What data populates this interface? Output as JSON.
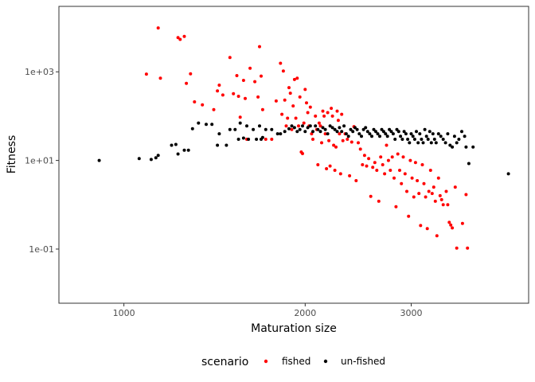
{
  "chart_data": {
    "type": "scatter",
    "title": "",
    "xlabel": "Maturation size",
    "ylabel": "Fitness",
    "x_scale": "log",
    "y_scale": "log",
    "xlim": [
      780,
      4700
    ],
    "ylim": [
      0.006,
      30000
    ],
    "x_ticks": [
      1000,
      2000,
      3000
    ],
    "x_tick_labels": [
      "1000",
      "2000",
      "3000"
    ],
    "y_ticks": [
      0.1,
      10,
      1000
    ],
    "y_tick_labels": [
      "1e-01",
      "1e+01",
      "1e+03"
    ],
    "grid": false,
    "legend_position": "bottom",
    "legend_title": "scenario",
    "series": [
      {
        "name": "fished",
        "color": "#ff0000",
        "points": [
          [
            1090,
            890
          ],
          [
            1140,
            9780
          ],
          [
            1150,
            720
          ],
          [
            1230,
            5900
          ],
          [
            1240,
            5400
          ],
          [
            1260,
            6300
          ],
          [
            1270,
            550
          ],
          [
            1290,
            900
          ],
          [
            1310,
            210
          ],
          [
            1350,
            180
          ],
          [
            1410,
            140
          ],
          [
            1430,
            370
          ],
          [
            1440,
            500
          ],
          [
            1460,
            300
          ],
          [
            1500,
            2100
          ],
          [
            1520,
            320
          ],
          [
            1540,
            820
          ],
          [
            1550,
            280
          ],
          [
            1560,
            95
          ],
          [
            1580,
            640
          ],
          [
            1590,
            250
          ],
          [
            1600,
            30
          ],
          [
            1620,
            1200
          ],
          [
            1650,
            600
          ],
          [
            1670,
            270
          ],
          [
            1680,
            3700
          ],
          [
            1690,
            800
          ],
          [
            1700,
            140
          ],
          [
            1720,
            30
          ],
          [
            1760,
            30
          ],
          [
            1790,
            220
          ],
          [
            1820,
            1560
          ],
          [
            1830,
            110
          ],
          [
            1840,
            1040
          ],
          [
            1850,
            230
          ],
          [
            1860,
            60
          ],
          [
            1870,
            90
          ],
          [
            1880,
            440
          ],
          [
            1890,
            330
          ],
          [
            1900,
            50
          ],
          [
            1910,
            170
          ],
          [
            1920,
            670
          ],
          [
            1930,
            90
          ],
          [
            1940,
            720
          ],
          [
            1950,
            60
          ],
          [
            1960,
            270
          ],
          [
            1970,
            15.5
          ],
          [
            1980,
            14.3
          ],
          [
            1990,
            70
          ],
          [
            2000,
            400
          ],
          [
            2010,
            200
          ],
          [
            2020,
            120
          ],
          [
            2030,
            60
          ],
          [
            2040,
            160
          ],
          [
            2050,
            40
          ],
          [
            2060,
            30
          ],
          [
            2080,
            100
          ],
          [
            2090,
            50
          ],
          [
            2100,
            8.0
          ],
          [
            2110,
            70
          ],
          [
            2120,
            60
          ],
          [
            2130,
            25
          ],
          [
            2140,
            130
          ],
          [
            2150,
            100
          ],
          [
            2160,
            40
          ],
          [
            2170,
            6.5
          ],
          [
            2180,
            120
          ],
          [
            2190,
            28
          ],
          [
            2200,
            7.5
          ],
          [
            2210,
            150
          ],
          [
            2220,
            100
          ],
          [
            2230,
            22
          ],
          [
            2240,
            6.0
          ],
          [
            2250,
            20
          ],
          [
            2260,
            130
          ],
          [
            2270,
            80
          ],
          [
            2280,
            40
          ],
          [
            2290,
            5.0
          ],
          [
            2300,
            110
          ],
          [
            2310,
            28
          ],
          [
            2330,
            40
          ],
          [
            2350,
            30
          ],
          [
            2370,
            4.5
          ],
          [
            2390,
            26
          ],
          [
            2410,
            58
          ],
          [
            2430,
            3.5
          ],
          [
            2450,
            25
          ],
          [
            2470,
            18
          ],
          [
            2490,
            8.0
          ],
          [
            2510,
            13
          ],
          [
            2530,
            7.5
          ],
          [
            2550,
            11
          ],
          [
            2570,
            1.55
          ],
          [
            2590,
            7
          ],
          [
            2610,
            9
          ],
          [
            2630,
            6
          ],
          [
            2650,
            1.2
          ],
          [
            2670,
            12
          ],
          [
            2690,
            8
          ],
          [
            2710,
            5
          ],
          [
            2730,
            22
          ],
          [
            2750,
            10
          ],
          [
            2770,
            6
          ],
          [
            2790,
            12
          ],
          [
            2810,
            4
          ],
          [
            2830,
            0.9
          ],
          [
            2850,
            14
          ],
          [
            2870,
            6
          ],
          [
            2890,
            3
          ],
          [
            2910,
            12
          ],
          [
            2930,
            5
          ],
          [
            2950,
            2
          ],
          [
            2970,
            0.55
          ],
          [
            2990,
            10
          ],
          [
            3010,
            4
          ],
          [
            3030,
            1.5
          ],
          [
            3050,
            9
          ],
          [
            3070,
            3.5
          ],
          [
            3090,
            1.8
          ],
          [
            3110,
            0.34
          ],
          [
            3130,
            8
          ],
          [
            3150,
            3
          ],
          [
            3170,
            1.5
          ],
          [
            3190,
            0.29
          ],
          [
            3210,
            2.0
          ],
          [
            3230,
            6
          ],
          [
            3250,
            1.8
          ],
          [
            3270,
            2.5
          ],
          [
            3290,
            1.2
          ],
          [
            3310,
            0.2
          ],
          [
            3330,
            4
          ],
          [
            3350,
            1.6
          ],
          [
            3370,
            1.3
          ],
          [
            3390,
            1.0
          ],
          [
            3430,
            2.0
          ],
          [
            3450,
            1.0
          ],
          [
            3470,
            0.4
          ],
          [
            3490,
            0.35
          ],
          [
            3510,
            0.3
          ],
          [
            3550,
            2.5
          ],
          [
            3570,
            0.105
          ],
          [
            3650,
            0.38
          ],
          [
            3700,
            1.7
          ],
          [
            3720,
            0.105
          ]
        ]
      },
      {
        "name": "un-fished",
        "color": "#000000",
        "points": [
          [
            910,
            10
          ],
          [
            1060,
            11
          ],
          [
            1110,
            10.5
          ],
          [
            1130,
            11.5
          ],
          [
            1140,
            13
          ],
          [
            1200,
            22
          ],
          [
            1220,
            23
          ],
          [
            1230,
            14
          ],
          [
            1260,
            17
          ],
          [
            1280,
            17
          ],
          [
            1300,
            52
          ],
          [
            1330,
            70
          ],
          [
            1370,
            65
          ],
          [
            1400,
            65
          ],
          [
            1430,
            22
          ],
          [
            1440,
            40
          ],
          [
            1480,
            22
          ],
          [
            1500,
            50
          ],
          [
            1530,
            50
          ],
          [
            1550,
            30
          ],
          [
            1560,
            70
          ],
          [
            1580,
            32
          ],
          [
            1600,
            60
          ],
          [
            1610,
            30
          ],
          [
            1640,
            50
          ],
          [
            1660,
            30
          ],
          [
            1680,
            60
          ],
          [
            1690,
            30
          ],
          [
            1700,
            33
          ],
          [
            1720,
            50
          ],
          [
            1760,
            50
          ],
          [
            1800,
            40
          ],
          [
            1820,
            40
          ],
          [
            1850,
            45
          ],
          [
            1880,
            52
          ],
          [
            1900,
            60
          ],
          [
            1920,
            55
          ],
          [
            1940,
            45
          ],
          [
            1960,
            50
          ],
          [
            1980,
            60
          ],
          [
            2000,
            45
          ],
          [
            2020,
            55
          ],
          [
            2040,
            60
          ],
          [
            2060,
            45
          ],
          [
            2080,
            60
          ],
          [
            2100,
            50
          ],
          [
            2120,
            45
          ],
          [
            2140,
            55
          ],
          [
            2160,
            50
          ],
          [
            2180,
            40
          ],
          [
            2200,
            60
          ],
          [
            2220,
            55
          ],
          [
            2240,
            50
          ],
          [
            2260,
            45
          ],
          [
            2280,
            55
          ],
          [
            2300,
            45
          ],
          [
            2320,
            60
          ],
          [
            2340,
            40
          ],
          [
            2360,
            35
          ],
          [
            2380,
            50
          ],
          [
            2400,
            45
          ],
          [
            2420,
            55
          ],
          [
            2440,
            50
          ],
          [
            2460,
            40
          ],
          [
            2480,
            35
          ],
          [
            2500,
            50
          ],
          [
            2520,
            55
          ],
          [
            2540,
            45
          ],
          [
            2560,
            40
          ],
          [
            2580,
            35
          ],
          [
            2600,
            50
          ],
          [
            2620,
            45
          ],
          [
            2640,
            40
          ],
          [
            2660,
            35
          ],
          [
            2680,
            50
          ],
          [
            2700,
            45
          ],
          [
            2720,
            40
          ],
          [
            2740,
            35
          ],
          [
            2760,
            50
          ],
          [
            2780,
            45
          ],
          [
            2800,
            40
          ],
          [
            2820,
            30
          ],
          [
            2840,
            50
          ],
          [
            2860,
            45
          ],
          [
            2880,
            35
          ],
          [
            2900,
            30
          ],
          [
            2920,
            45
          ],
          [
            2940,
            40
          ],
          [
            2960,
            30
          ],
          [
            2980,
            25
          ],
          [
            3000,
            40
          ],
          [
            3020,
            35
          ],
          [
            3040,
            30
          ],
          [
            3060,
            45
          ],
          [
            3080,
            25
          ],
          [
            3100,
            40
          ],
          [
            3120,
            30
          ],
          [
            3140,
            25
          ],
          [
            3160,
            50
          ],
          [
            3180,
            35
          ],
          [
            3200,
            30
          ],
          [
            3220,
            45
          ],
          [
            3240,
            25
          ],
          [
            3260,
            40
          ],
          [
            3280,
            30
          ],
          [
            3300,
            25
          ],
          [
            3330,
            40
          ],
          [
            3360,
            35
          ],
          [
            3390,
            30
          ],
          [
            3420,
            25
          ],
          [
            3450,
            40
          ],
          [
            3480,
            22
          ],
          [
            3510,
            20
          ],
          [
            3540,
            35
          ],
          [
            3570,
            25
          ],
          [
            3600,
            30
          ],
          [
            3640,
            45
          ],
          [
            3680,
            35
          ],
          [
            3700,
            20
          ],
          [
            3740,
            8.5
          ],
          [
            3800,
            20
          ],
          [
            4350,
            5
          ]
        ]
      }
    ]
  }
}
